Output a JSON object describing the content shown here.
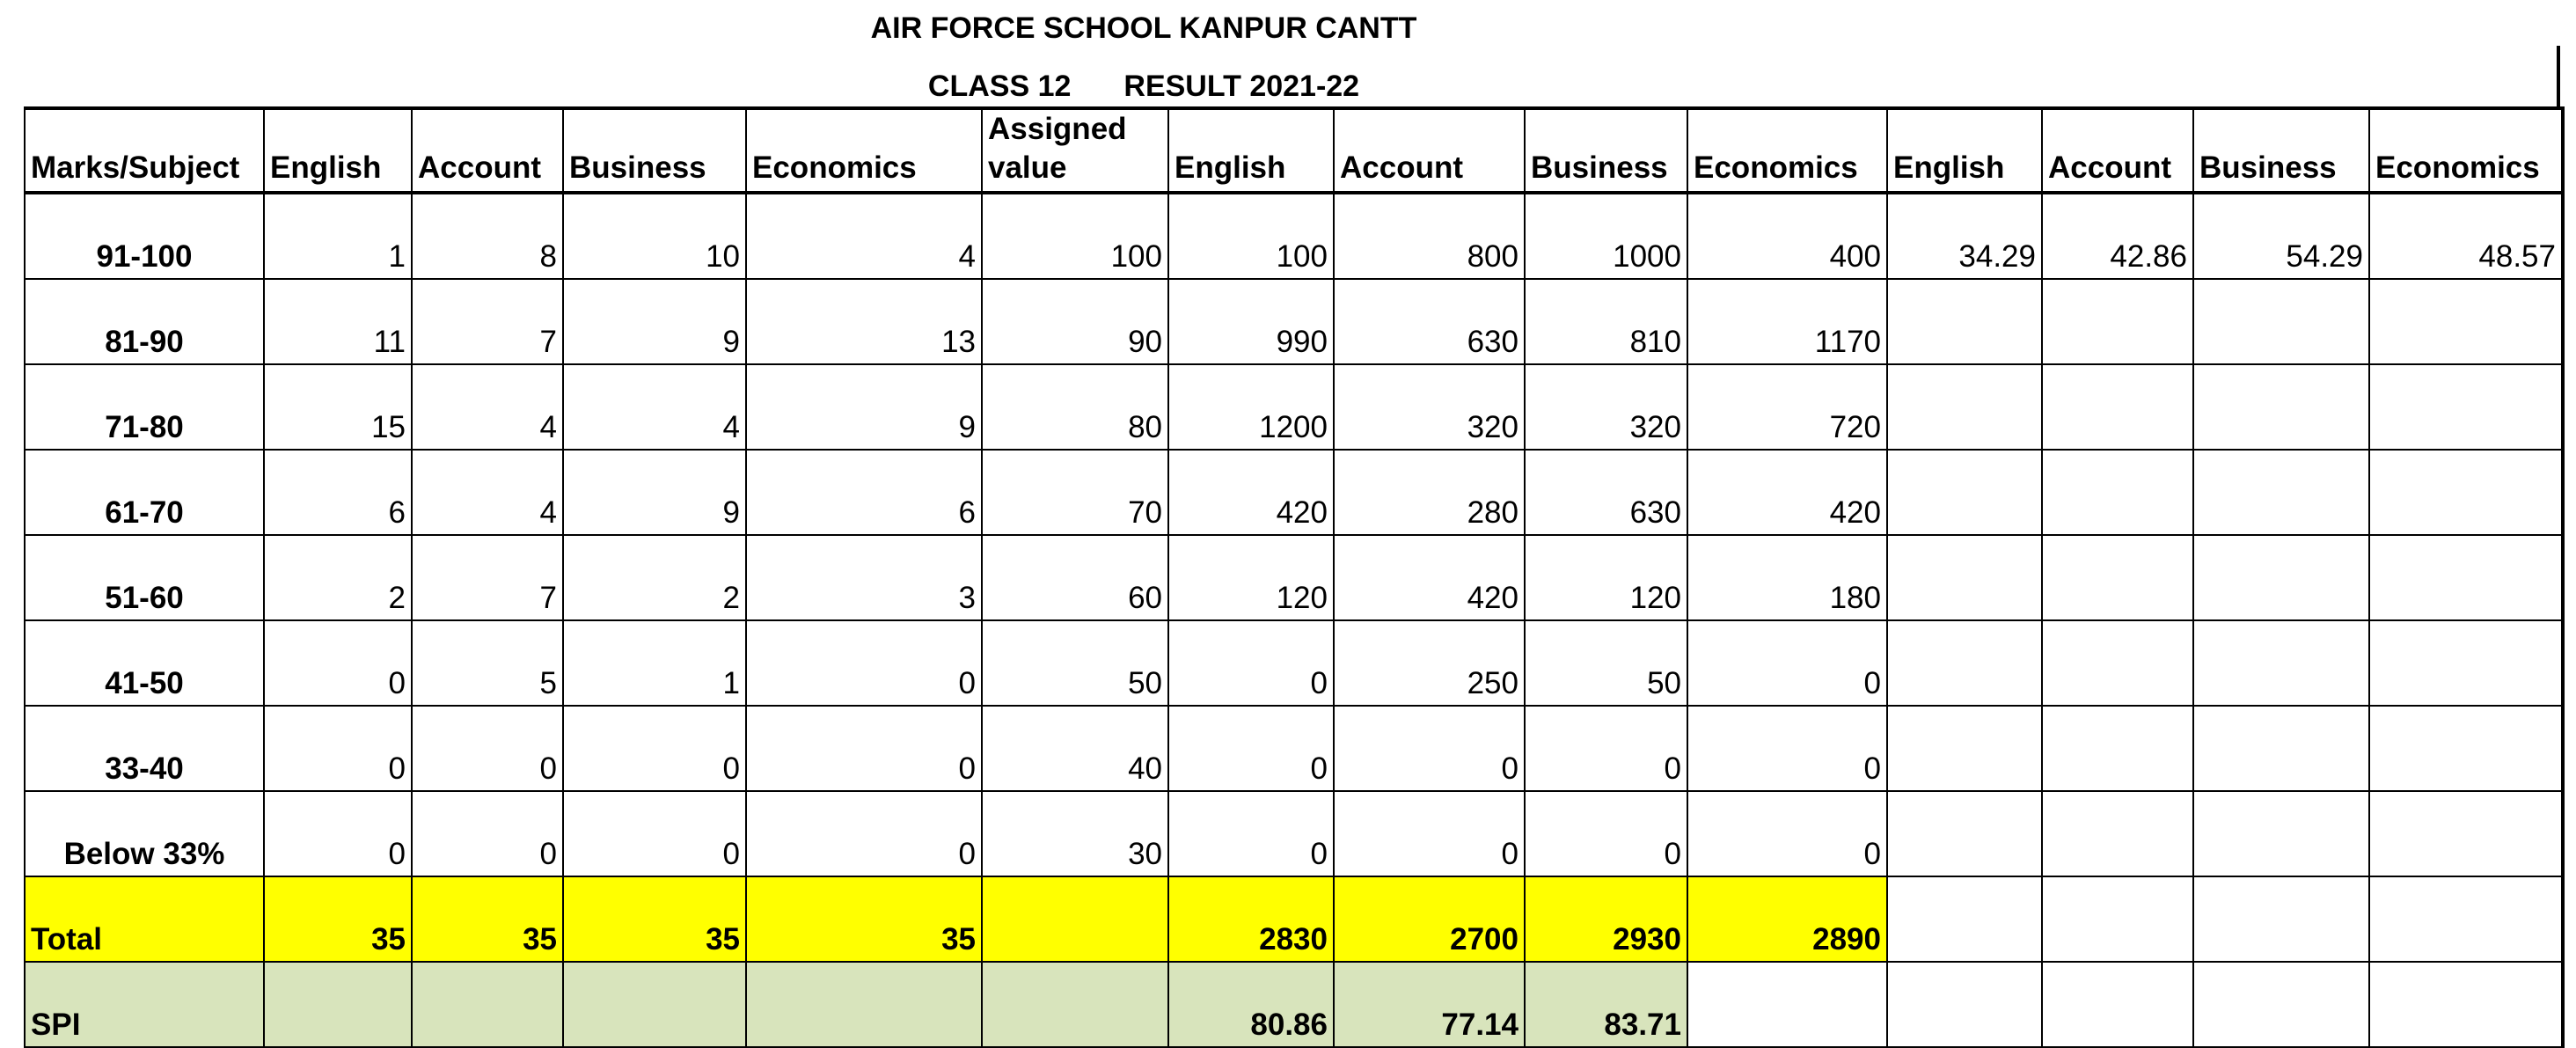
{
  "title": "AIR FORCE SCHOOL KANPUR CANTT",
  "subtitle": {
    "class": "CLASS 12",
    "result": "RESULT 2021-22"
  },
  "headers": [
    "Marks/Subject",
    "English",
    "Account",
    "Business",
    "Economics",
    "Assigned value",
    "English",
    "Account",
    "Business",
    "Economics",
    "English",
    "Account",
    "Business",
    "Economics"
  ],
  "rows": [
    {
      "band": "91-100",
      "cells": [
        "1",
        "8",
        "10",
        "4",
        "100",
        "100",
        "800",
        "1000",
        "400",
        "34.29",
        "42.86",
        "54.29",
        "48.57"
      ]
    },
    {
      "band": "81-90",
      "cells": [
        "11",
        "7",
        "9",
        "13",
        "90",
        "990",
        "630",
        "810",
        "1170",
        "",
        "",
        "",
        ""
      ]
    },
    {
      "band": "71-80",
      "cells": [
        "15",
        "4",
        "4",
        "9",
        "80",
        "1200",
        "320",
        "320",
        "720",
        "",
        "",
        "",
        ""
      ]
    },
    {
      "band": "61-70",
      "cells": [
        "6",
        "4",
        "9",
        "6",
        "70",
        "420",
        "280",
        "630",
        "420",
        "",
        "",
        "",
        ""
      ]
    },
    {
      "band": "51-60",
      "cells": [
        "2",
        "7",
        "2",
        "3",
        "60",
        "120",
        "420",
        "120",
        "180",
        "",
        "",
        "",
        ""
      ]
    },
    {
      "band": "41-50",
      "cells": [
        "0",
        "5",
        "1",
        "0",
        "50",
        "0",
        "250",
        "50",
        "0",
        "",
        "",
        "",
        ""
      ]
    },
    {
      "band": "33-40",
      "cells": [
        "0",
        "0",
        "0",
        "0",
        "40",
        "0",
        "0",
        "0",
        "0",
        "",
        "",
        "",
        ""
      ]
    },
    {
      "band": "Below 33%",
      "cells": [
        "0",
        "0",
        "0",
        "0",
        "30",
        "0",
        "0",
        "0",
        "0",
        "",
        "",
        "",
        ""
      ]
    }
  ],
  "total": {
    "label": "Total",
    "cells": [
      "35",
      "35",
      "35",
      "35",
      "",
      "2830",
      "2700",
      "2930",
      "2890",
      "",
      "",
      "",
      ""
    ]
  },
  "spi": {
    "label": "SPI",
    "cells": [
      "",
      "",
      "",
      "",
      "",
      "80.86",
      "77.14",
      "83.71",
      "",
      "",
      "",
      "",
      ""
    ]
  },
  "colors": {
    "total_fill": "#ffff00",
    "spi_fill": "#d8e4bc"
  }
}
